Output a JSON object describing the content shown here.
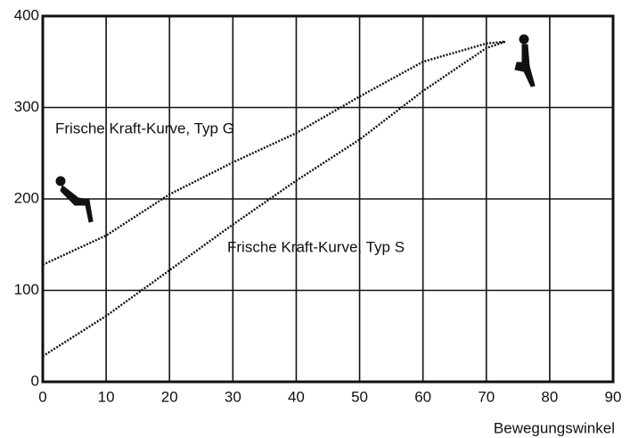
{
  "chart_data": {
    "type": "line",
    "x": [
      0,
      10,
      20,
      30,
      40,
      50,
      60,
      70,
      73
    ],
    "series": [
      {
        "name": "Frische Kraft-Kurve, Typ G",
        "color": "#111111",
        "values": [
          128,
          160,
          205,
          240,
          272,
          312,
          350,
          370,
          372
        ]
      },
      {
        "name": "Frische Kraft-Kurve, Typ S",
        "color": "#111111",
        "values": [
          28,
          72,
          122,
          172,
          220,
          265,
          318,
          365,
          372
        ]
      }
    ],
    "x_label": "Bewegungswinkel",
    "xlim": [
      0,
      90
    ],
    "xticks": [
      0,
      10,
      20,
      30,
      40,
      50,
      60,
      70,
      80,
      90
    ],
    "ylim": [
      0,
      400
    ],
    "yticks": [
      0,
      100,
      200,
      300,
      400
    ],
    "grid": true
  }
}
